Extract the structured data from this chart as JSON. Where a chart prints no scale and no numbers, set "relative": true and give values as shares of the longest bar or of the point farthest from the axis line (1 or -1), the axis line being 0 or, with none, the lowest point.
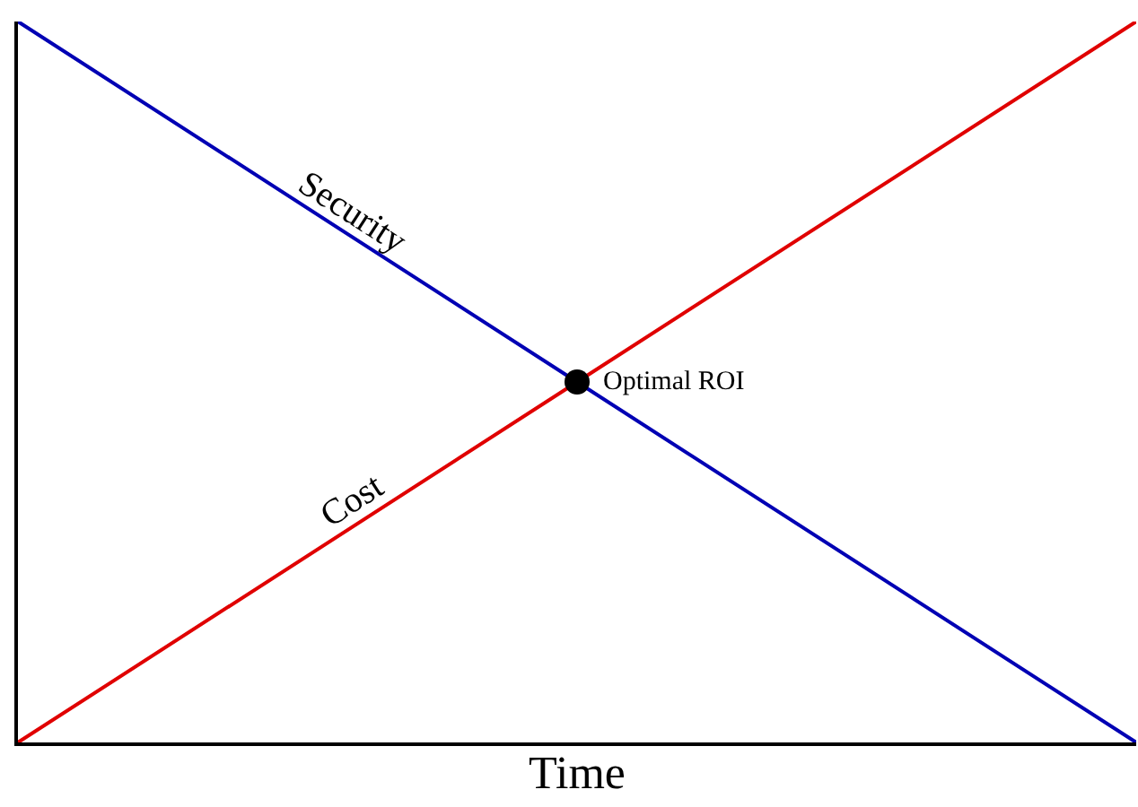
{
  "chart_data": {
    "type": "line",
    "relative": true,
    "xlabel": "Time",
    "categories": [
      null,
      null,
      null
    ],
    "series": [
      {
        "name": "Security",
        "color": "#0000b4",
        "values": [
          1,
          0.5,
          0
        ]
      },
      {
        "name": "Cost",
        "color": "#e00000",
        "values": [
          0,
          0.5,
          1
        ]
      }
    ],
    "annotations": [
      "Optimal ROI"
    ],
    "legend": false,
    "marker": "none",
    "line_style": "solid"
  }
}
